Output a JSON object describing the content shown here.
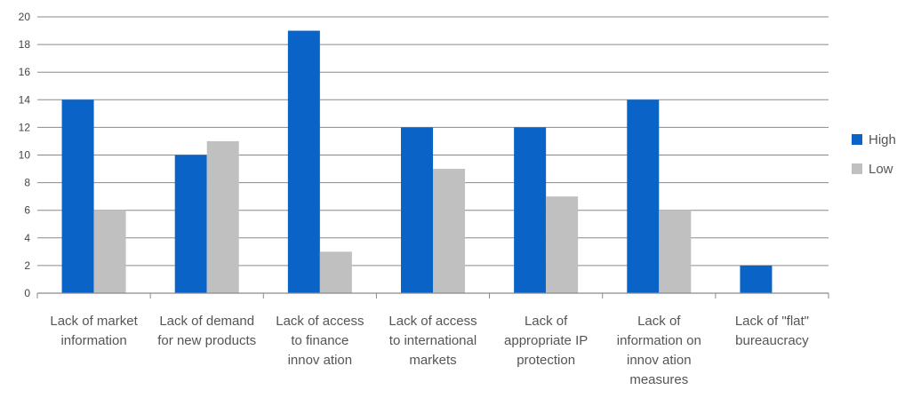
{
  "chart_data": {
    "type": "bar",
    "categories": [
      [
        "Lack of market",
        "information"
      ],
      [
        "Lack of demand",
        "for new products"
      ],
      [
        "Lack of access",
        "to finance",
        "innov ation"
      ],
      [
        "Lack of access",
        "to international",
        "markets"
      ],
      [
        "Lack of",
        "appropriate IP",
        "protection"
      ],
      [
        "Lack of",
        "information on",
        "innov ation",
        "measures"
      ],
      [
        "Lack of \"flat\"",
        "bureaucracy"
      ]
    ],
    "series": [
      {
        "name": "High",
        "color": "#0a64c8",
        "values": [
          14,
          10,
          19,
          12,
          12,
          14,
          2
        ]
      },
      {
        "name": "Low",
        "color": "#c0c0c0",
        "values": [
          6,
          11,
          3,
          9,
          7,
          6,
          0
        ]
      }
    ],
    "ylim": [
      0,
      20
    ],
    "yticks": [
      "0",
      "2",
      "4",
      "6",
      "8",
      "10",
      "12",
      "14",
      "16",
      "18",
      "20"
    ],
    "grid": true,
    "legend_position": "right",
    "title": "",
    "xlabel": "",
    "ylabel": ""
  }
}
